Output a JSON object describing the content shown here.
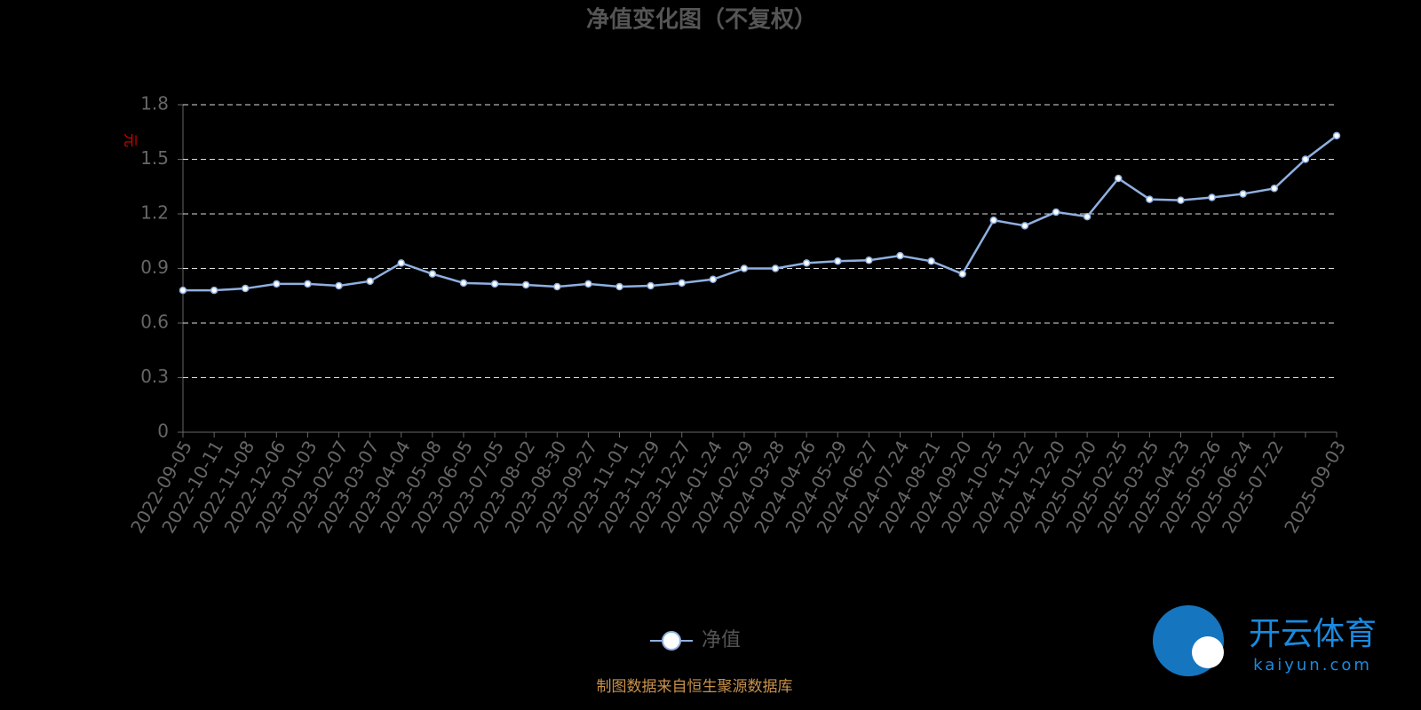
{
  "chart_data": {
    "type": "line",
    "title": "净值变化图（不复权）",
    "y_label": "元",
    "categories": [
      "2022-09-05",
      "2022-10-11",
      "2022-11-08",
      "2022-12-06",
      "2023-01-03",
      "2023-02-07",
      "2023-03-07",
      "2023-04-04",
      "2023-05-08",
      "2023-06-05",
      "2023-07-05",
      "2023-08-02",
      "2023-08-30",
      "2023-09-27",
      "2023-11-01",
      "2023-11-29",
      "2023-12-27",
      "2024-01-24",
      "2024-02-29",
      "2024-03-28",
      "2024-04-26",
      "2024-05-29",
      "2024-06-27",
      "2024-07-24",
      "2024-08-21",
      "2024-09-20",
      "2024-10-25",
      "2024-11-22",
      "2024-12-20",
      "2025-01-20",
      "2025-02-25",
      "2025-03-25",
      "2025-04-23",
      "2025-05-26",
      "2025-06-24",
      "2025-07-22",
      null,
      "2025-09-03"
    ],
    "series": [
      {
        "name": "净值",
        "color": "#8fb0e0",
        "values": [
          0.78,
          0.78,
          0.79,
          0.815,
          0.815,
          0.805,
          0.83,
          0.93,
          0.87,
          0.82,
          0.815,
          0.81,
          0.8,
          0.815,
          0.8,
          0.805,
          0.82,
          0.84,
          0.9,
          0.9,
          0.93,
          0.94,
          0.945,
          0.97,
          0.94,
          0.87,
          1.165,
          1.135,
          1.21,
          1.185,
          1.395,
          1.28,
          1.275,
          1.29,
          1.31,
          1.34,
          1.5,
          1.63
        ]
      }
    ],
    "ylim": [
      0,
      1.8
    ],
    "yticks": [
      0,
      0.3,
      0.6,
      0.9,
      1.2,
      1.5,
      1.8
    ],
    "grid": true,
    "source": "制图数据来自恒生聚源数据库"
  },
  "watermark": {
    "brand": "开云体育",
    "site": "kaiyun.com"
  }
}
